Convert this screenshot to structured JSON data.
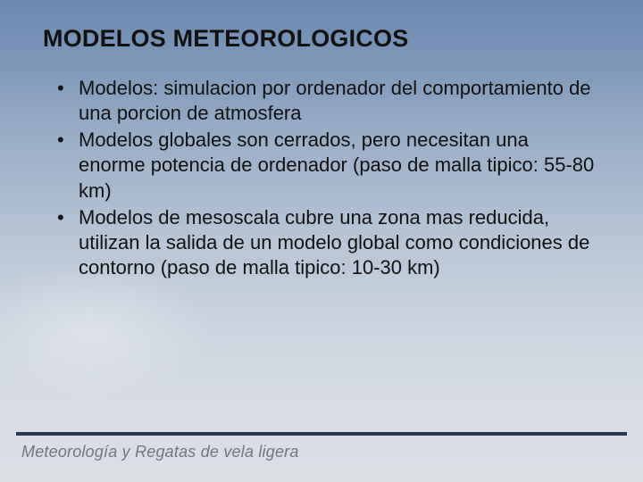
{
  "slide": {
    "title": "MODELOS METEOROLOGICOS",
    "title_fontsize": 27,
    "title_color": "#111111",
    "bullets": [
      "Modelos: simulacion por ordenador del comportamiento de una porcion de atmosfera",
      "Modelos globales son cerrados, pero necesitan una enorme potencia de ordenador (paso de malla tipico: 55-80 km)",
      "Modelos de mesoscala cubre una zona mas reducida, utilizan la salida de un modelo global como condiciones de contorno (paso de malla tipico: 10-30 km)"
    ],
    "bullet_fontsize": 22,
    "bullet_color": "#111111",
    "background_gradient": [
      "#6b89b0",
      "#7b96b9",
      "#9cb0c9",
      "#b8c5d6",
      "#cdd5e0",
      "#d8dde5",
      "#dcdfe4"
    ]
  },
  "footer": {
    "line_color": "#2b3856",
    "text": "Meteorología y Regatas de vela ligera",
    "text_color": "#6e7684",
    "text_fontsize": 18
  }
}
